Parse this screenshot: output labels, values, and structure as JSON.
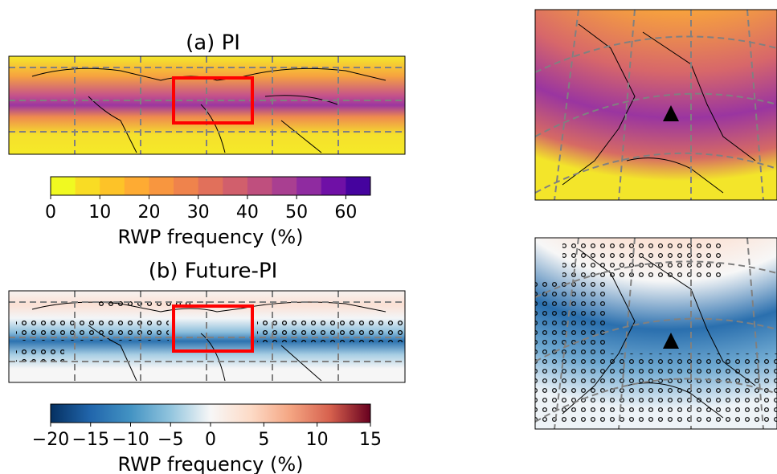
{
  "panels": [
    {
      "title": "(a) PI"
    },
    {
      "title": "(b) Future-PI"
    }
  ],
  "colorbars": [
    {
      "lim": [
        0,
        65
      ],
      "ticks": [
        0,
        10,
        20,
        30,
        40,
        50,
        60
      ],
      "label": "RWP frequency (%)",
      "colors": [
        "#f0f921",
        "#f9dc24",
        "#fdc328",
        "#feab33",
        "#f8963f",
        "#ef834c",
        "#e1705b",
        "#d15f6c",
        "#bf4f7e",
        "#a93f91",
        "#8f2ba0",
        "#6f10a6",
        "#45039e"
      ]
    },
    {
      "lim": [
        -20,
        15
      ],
      "vcenter": 0,
      "ticks": [
        {
          "value": -20,
          "label": "−20"
        },
        {
          "value": -15,
          "label": "−15"
        },
        {
          "value": -10,
          "label": "−10"
        },
        {
          "value": -5,
          "label": "−5"
        },
        0,
        5,
        10,
        15
      ],
      "label": "RWP frequency (%)",
      "colors": [
        "#053061",
        "#2166ac",
        "#4393c3",
        "#92c5de",
        "#f7f7f7",
        "#fddbc7",
        "#f4a582",
        "#d6604d",
        "#67001f"
      ]
    }
  ]
}
